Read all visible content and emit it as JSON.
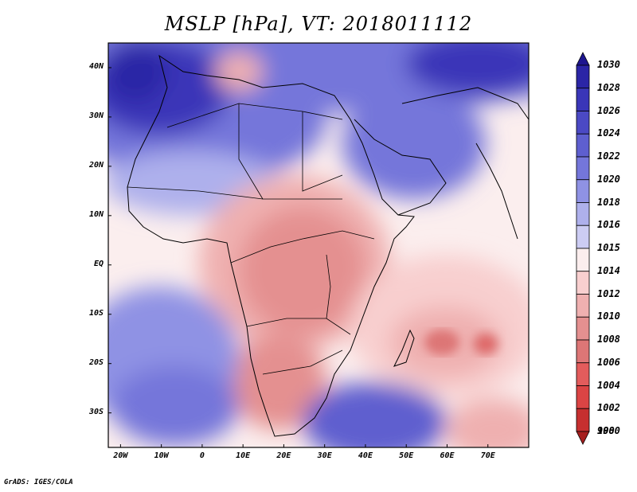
{
  "title": "MSLP [hPa], VT: 2018011112",
  "credit": "GrADS: IGES/COLA",
  "map": {
    "lon_range": [
      -23,
      80
    ],
    "lat_range": [
      -37,
      45
    ],
    "lon_ticks": [
      {
        "value": -20,
        "label": "20W"
      },
      {
        "value": -10,
        "label": "10W"
      },
      {
        "value": 0,
        "label": "0"
      },
      {
        "value": 10,
        "label": "10E"
      },
      {
        "value": 20,
        "label": "20E"
      },
      {
        "value": 30,
        "label": "30E"
      },
      {
        "value": 40,
        "label": "40E"
      },
      {
        "value": 50,
        "label": "50E"
      },
      {
        "value": 60,
        "label": "60E"
      },
      {
        "value": 70,
        "label": "70E"
      }
    ],
    "lat_ticks": [
      {
        "value": 40,
        "label": "40N"
      },
      {
        "value": 30,
        "label": "30N"
      },
      {
        "value": 20,
        "label": "20N"
      },
      {
        "value": 10,
        "label": "10N"
      },
      {
        "value": 0,
        "label": "EQ"
      },
      {
        "value": -10,
        "label": "10S"
      },
      {
        "value": -20,
        "label": "20S"
      },
      {
        "value": -30,
        "label": "30S"
      }
    ]
  },
  "colorbar": {
    "levels": [
      {
        "label": "1030",
        "color": "#1e168f"
      },
      {
        "label": "1028",
        "color": "#2b25a6"
      },
      {
        "label": "1026",
        "color": "#3a36b8"
      },
      {
        "label": "1024",
        "color": "#4b49c4"
      },
      {
        "label": "1022",
        "color": "#5e5fcf"
      },
      {
        "label": "1020",
        "color": "#7476da"
      },
      {
        "label": "1018",
        "color": "#8f92e4"
      },
      {
        "label": "1016",
        "color": "#aeb0ec"
      },
      {
        "label": "1015",
        "color": "#ccccf3"
      },
      {
        "label": "1014",
        "color": "#fbeeee"
      },
      {
        "label": "1012",
        "color": "#f8cfcf"
      },
      {
        "label": "1010",
        "color": "#efb0b0"
      },
      {
        "label": "1008",
        "color": "#e49090"
      },
      {
        "label": "1006",
        "color": "#dd7676"
      },
      {
        "label": "1004",
        "color": "#e35c5c"
      },
      {
        "label": "1002",
        "color": "#db4444"
      },
      {
        "label": "1000",
        "color": "#c62f2f"
      },
      {
        "label": "998",
        "color": "#a61f1f"
      }
    ]
  }
}
